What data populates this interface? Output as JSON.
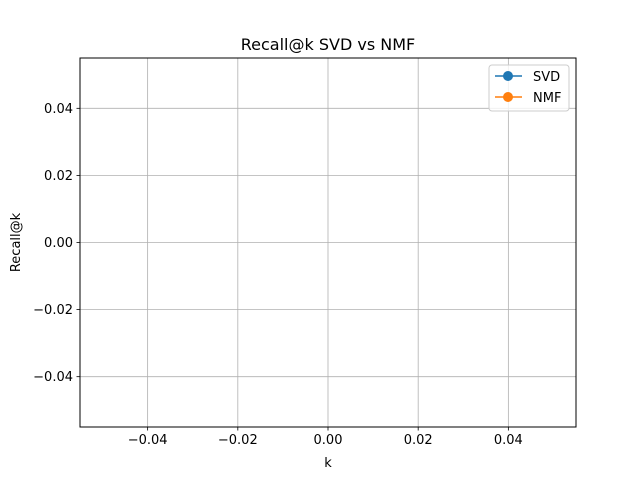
{
  "chart_data": {
    "type": "line",
    "title": "Recall@k SVD vs NMF",
    "xlabel": "k",
    "ylabel": "Recall@k",
    "xlim": [
      -0.055,
      0.055
    ],
    "ylim": [
      -0.055,
      0.055
    ],
    "x_ticks": [
      "−0.04",
      "−0.02",
      "0.00",
      "0.02",
      "0.04"
    ],
    "x_tick_values": [
      -0.04,
      -0.02,
      0.0,
      0.02,
      0.04
    ],
    "y_ticks": [
      "−0.04",
      "−0.02",
      "0.00",
      "0.02",
      "0.04"
    ],
    "y_tick_values": [
      -0.04,
      -0.02,
      0.0,
      0.02,
      0.04
    ],
    "grid": true,
    "legend_position": "top-right",
    "series": [
      {
        "name": "SVD",
        "color": "#1f77b4",
        "marker": "circle",
        "x": [],
        "y": []
      },
      {
        "name": "NMF",
        "color": "#ff7f0e",
        "marker": "circle",
        "x": [],
        "y": []
      }
    ]
  }
}
